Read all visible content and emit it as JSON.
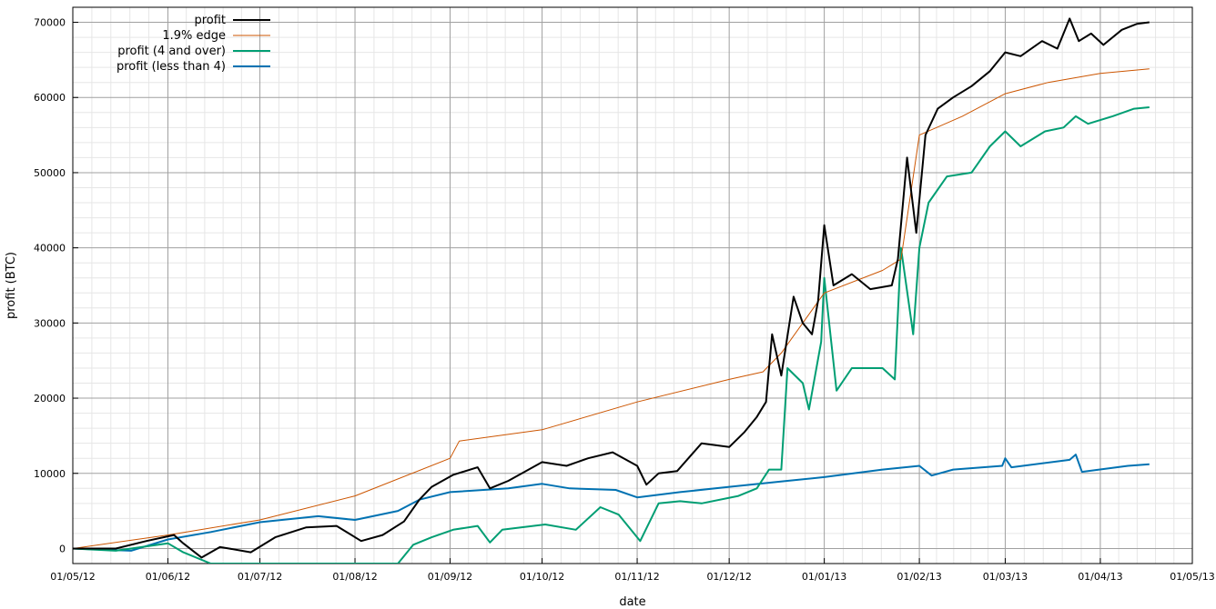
{
  "chart_data": {
    "type": "line",
    "title": "",
    "xlabel": "date",
    "ylabel": "profit (BTC)",
    "xlim": [
      "2012-05-01",
      "2013-05-01"
    ],
    "ylim": [
      -2000,
      72000
    ],
    "grid": "major and minor",
    "legend_position": "top-left",
    "x_ticks": [
      "01/05/12",
      "01/06/12",
      "01/07/12",
      "01/08/12",
      "01/09/12",
      "01/10/12",
      "01/11/12",
      "01/12/12",
      "01/01/13",
      "01/02/13",
      "01/03/13",
      "01/04/13",
      "01/05/13"
    ],
    "y_ticks": [
      0,
      10000,
      20000,
      30000,
      40000,
      50000,
      60000,
      70000
    ],
    "series": [
      {
        "name": "profit",
        "color": "#000000",
        "points": [
          [
            "2012-05-01",
            0
          ],
          [
            "2012-05-15",
            0
          ],
          [
            "2012-05-25",
            1000
          ],
          [
            "2012-06-03",
            1800
          ],
          [
            "2012-06-06",
            700
          ],
          [
            "2012-06-12",
            -1200
          ],
          [
            "2012-06-18",
            200
          ],
          [
            "2012-06-28",
            -500
          ],
          [
            "2012-07-06",
            1500
          ],
          [
            "2012-07-16",
            2800
          ],
          [
            "2012-07-26",
            3000
          ],
          [
            "2012-08-03",
            1000
          ],
          [
            "2012-08-10",
            1800
          ],
          [
            "2012-08-17",
            3600
          ],
          [
            "2012-08-22",
            6500
          ],
          [
            "2012-08-26",
            8200
          ],
          [
            "2012-09-02",
            9800
          ],
          [
            "2012-09-10",
            10800
          ],
          [
            "2012-09-14",
            8000
          ],
          [
            "2012-09-20",
            9000
          ],
          [
            "2012-10-01",
            11500
          ],
          [
            "2012-10-09",
            11000
          ],
          [
            "2012-10-16",
            12000
          ],
          [
            "2012-10-24",
            12800
          ],
          [
            "2012-11-01",
            11000
          ],
          [
            "2012-11-04",
            8500
          ],
          [
            "2012-11-08",
            10000
          ],
          [
            "2012-11-14",
            10300
          ],
          [
            "2012-11-22",
            14000
          ],
          [
            "2012-12-01",
            13500
          ],
          [
            "2012-12-06",
            15500
          ],
          [
            "2012-12-10",
            17500
          ],
          [
            "2012-12-13",
            19500
          ],
          [
            "2012-12-15",
            28500
          ],
          [
            "2012-12-18",
            23000
          ],
          [
            "2012-12-22",
            33500
          ],
          [
            "2012-12-25",
            30000
          ],
          [
            "2012-12-28",
            28500
          ],
          [
            "2012-12-30",
            33000
          ],
          [
            "2013-01-01",
            43000
          ],
          [
            "2013-01-04",
            35000
          ],
          [
            "2013-01-10",
            36500
          ],
          [
            "2013-01-16",
            34500
          ],
          [
            "2013-01-23",
            35000
          ],
          [
            "2013-01-25",
            38500
          ],
          [
            "2013-01-28",
            52000
          ],
          [
            "2013-01-31",
            42000
          ],
          [
            "2013-02-03",
            55000
          ],
          [
            "2013-02-07",
            58500
          ],
          [
            "2013-02-12",
            60000
          ],
          [
            "2013-02-18",
            61500
          ],
          [
            "2013-02-24",
            63500
          ],
          [
            "2013-03-01",
            66000
          ],
          [
            "2013-03-06",
            65500
          ],
          [
            "2013-03-13",
            67500
          ],
          [
            "2013-03-18",
            66500
          ],
          [
            "2013-03-20",
            68500
          ],
          [
            "2013-03-22",
            70500
          ],
          [
            "2013-03-25",
            67500
          ],
          [
            "2013-03-29",
            68500
          ],
          [
            "2013-04-02",
            67000
          ],
          [
            "2013-04-08",
            69000
          ],
          [
            "2013-04-13",
            69800
          ],
          [
            "2013-04-17",
            70000
          ]
        ]
      },
      {
        "name": "1.9% edge",
        "color": "#cc5500",
        "points": [
          [
            "2012-05-01",
            0
          ],
          [
            "2012-06-01",
            1800
          ],
          [
            "2012-07-01",
            3800
          ],
          [
            "2012-08-01",
            7000
          ],
          [
            "2012-09-01",
            12000
          ],
          [
            "2012-09-04",
            14300
          ],
          [
            "2012-10-01",
            15800
          ],
          [
            "2012-11-01",
            19500
          ],
          [
            "2012-12-01",
            22500
          ],
          [
            "2012-12-12",
            23500
          ],
          [
            "2012-12-18",
            26000
          ],
          [
            "2013-01-01",
            34000
          ],
          [
            "2013-01-20",
            37000
          ],
          [
            "2013-01-26",
            38500
          ],
          [
            "2013-02-01",
            55000
          ],
          [
            "2013-02-15",
            57500
          ],
          [
            "2013-03-01",
            60500
          ],
          [
            "2013-03-15",
            62000
          ],
          [
            "2013-04-01",
            63200
          ],
          [
            "2013-04-17",
            63800
          ]
        ]
      },
      {
        "name": "profit (4 and over)",
        "color": "#009e73",
        "points": [
          [
            "2012-05-01",
            0
          ],
          [
            "2012-05-15",
            -300
          ],
          [
            "2012-06-01",
            700
          ],
          [
            "2012-06-06",
            -500
          ],
          [
            "2012-06-15",
            -2000
          ],
          [
            "2012-08-15",
            -2000
          ],
          [
            "2012-08-20",
            500
          ],
          [
            "2012-08-26",
            1500
          ],
          [
            "2012-09-02",
            2500
          ],
          [
            "2012-09-10",
            3000
          ],
          [
            "2012-09-14",
            800
          ],
          [
            "2012-09-18",
            2500
          ],
          [
            "2012-10-02",
            3200
          ],
          [
            "2012-10-12",
            2500
          ],
          [
            "2012-10-20",
            5500
          ],
          [
            "2012-10-26",
            4500
          ],
          [
            "2012-11-02",
            1000
          ],
          [
            "2012-11-08",
            6000
          ],
          [
            "2012-11-15",
            6300
          ],
          [
            "2012-11-22",
            6000
          ],
          [
            "2012-12-04",
            7000
          ],
          [
            "2012-12-10",
            8000
          ],
          [
            "2012-12-14",
            10500
          ],
          [
            "2012-12-18",
            10500
          ],
          [
            "2012-12-20",
            24000
          ],
          [
            "2012-12-25",
            22000
          ],
          [
            "2012-12-27",
            18500
          ],
          [
            "2012-12-31",
            27500
          ],
          [
            "2013-01-01",
            36000
          ],
          [
            "2013-01-05",
            21000
          ],
          [
            "2013-01-10",
            24000
          ],
          [
            "2013-01-20",
            24000
          ],
          [
            "2013-01-24",
            22500
          ],
          [
            "2013-01-26",
            40000
          ],
          [
            "2013-01-30",
            28500
          ],
          [
            "2013-02-01",
            40000
          ],
          [
            "2013-02-04",
            46000
          ],
          [
            "2013-02-10",
            49500
          ],
          [
            "2013-02-18",
            50000
          ],
          [
            "2013-02-24",
            53500
          ],
          [
            "2013-03-01",
            55500
          ],
          [
            "2013-03-06",
            53500
          ],
          [
            "2013-03-14",
            55500
          ],
          [
            "2013-03-20",
            56000
          ],
          [
            "2013-03-24",
            57500
          ],
          [
            "2013-03-28",
            56500
          ],
          [
            "2013-04-05",
            57500
          ],
          [
            "2013-04-12",
            58500
          ],
          [
            "2013-04-17",
            58700
          ]
        ]
      },
      {
        "name": "profit (less than 4)",
        "color": "#0072b2",
        "points": [
          [
            "2012-05-01",
            0
          ],
          [
            "2012-05-20",
            -300
          ],
          [
            "2012-06-01",
            1200
          ],
          [
            "2012-06-15",
            2200
          ],
          [
            "2012-07-01",
            3500
          ],
          [
            "2012-07-20",
            4300
          ],
          [
            "2012-08-01",
            3800
          ],
          [
            "2012-08-15",
            5000
          ],
          [
            "2012-08-22",
            6500
          ],
          [
            "2012-09-01",
            7500
          ],
          [
            "2012-09-20",
            8000
          ],
          [
            "2012-10-01",
            8600
          ],
          [
            "2012-10-10",
            8000
          ],
          [
            "2012-10-25",
            7800
          ],
          [
            "2012-11-01",
            6800
          ],
          [
            "2012-11-15",
            7500
          ],
          [
            "2012-12-01",
            8200
          ],
          [
            "2012-12-20",
            9000
          ],
          [
            "2013-01-01",
            9500
          ],
          [
            "2013-01-20",
            10500
          ],
          [
            "2013-02-01",
            11000
          ],
          [
            "2013-02-05",
            9700
          ],
          [
            "2013-02-12",
            10500
          ],
          [
            "2013-02-28",
            11000
          ],
          [
            "2013-03-01",
            12000
          ],
          [
            "2013-03-03",
            10800
          ],
          [
            "2013-03-22",
            11800
          ],
          [
            "2013-03-24",
            12500
          ],
          [
            "2013-03-26",
            10200
          ],
          [
            "2013-04-10",
            11000
          ],
          [
            "2013-04-17",
            11200
          ]
        ]
      }
    ]
  }
}
